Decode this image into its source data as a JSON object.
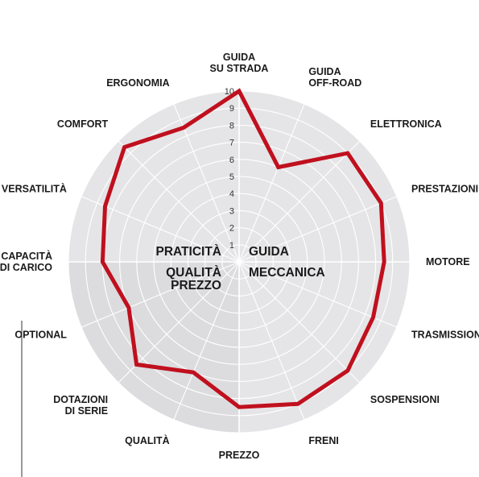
{
  "chart_data": {
    "type": "radar",
    "title": "",
    "scale": {
      "min": 0,
      "max": 10,
      "ticks": [
        "1",
        "2",
        "3",
        "4",
        "5",
        "6",
        "7",
        "8",
        "9",
        "10"
      ]
    },
    "groups": [
      {
        "lines": [
          "PRATICITÀ"
        ]
      },
      {
        "lines": [
          "GUIDA"
        ]
      },
      {
        "lines": [
          "QUALITÀ",
          "PREZZO"
        ]
      },
      {
        "lines": [
          "MECCANICA"
        ]
      }
    ],
    "axes": [
      {
        "lines": [
          "GUIDA",
          "SU STRADA"
        ],
        "value": 10
      },
      {
        "lines": [
          "GUIDA",
          "OFF-ROAD"
        ],
        "value": 6
      },
      {
        "lines": [
          "ELETTRONICA"
        ],
        "value": 9
      },
      {
        "lines": [
          "PRESTAZIONI"
        ],
        "value": 9
      },
      {
        "lines": [
          "MOTORE"
        ],
        "value": 8.5
      },
      {
        "lines": [
          "TRASMISSIONE"
        ],
        "value": 8.5
      },
      {
        "lines": [
          "SOSPENSIONI"
        ],
        "value": 9
      },
      {
        "lines": [
          "FRENI"
        ],
        "value": 9
      },
      {
        "lines": [
          "PREZZO"
        ],
        "value": 8.5
      },
      {
        "lines": [
          "QUALITÀ"
        ],
        "value": 7
      },
      {
        "lines": [
          "DOTAZIONI",
          "DI SERIE"
        ],
        "value": 8.5
      },
      {
        "lines": [
          "OPTIONAL"
        ],
        "value": 7
      },
      {
        "lines": [
          "CAPACITÀ",
          "DI CARICO"
        ],
        "value": 8
      },
      {
        "lines": [
          "VERSATILITÀ"
        ],
        "value": 8.5
      },
      {
        "lines": [
          "COMFORT"
        ],
        "value": 9.5
      },
      {
        "lines": [
          "ERGONOMIA"
        ],
        "value": 8.5
      }
    ],
    "colors": {
      "series": "#c0101e",
      "background": "#e5e5e7",
      "highlight_quadrant": "#dcdcdf",
      "grid": "#ffffff"
    }
  }
}
